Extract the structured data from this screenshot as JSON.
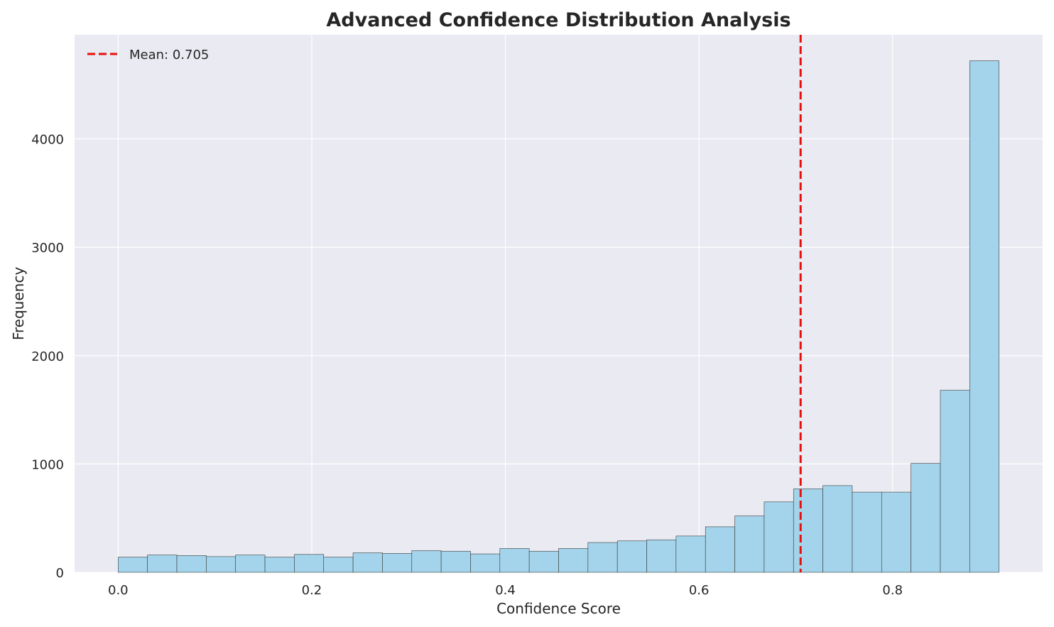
{
  "chart_data": {
    "type": "bar",
    "title": "Advanced Confidence Distribution Analysis",
    "xlabel": "Confidence Score",
    "ylabel": "Frequency",
    "xlim": [
      -0.045,
      0.955
    ],
    "ylim": [
      0,
      4960
    ],
    "xticks": [
      0.0,
      0.2,
      0.4,
      0.6,
      0.8
    ],
    "xtick_labels": [
      "0.0",
      "0.2",
      "0.4",
      "0.6",
      "0.8"
    ],
    "yticks": [
      0,
      1000,
      2000,
      3000,
      4000
    ],
    "ytick_labels": [
      "0",
      "1000",
      "2000",
      "3000",
      "4000"
    ],
    "grid": true,
    "bins": {
      "start": 0.0,
      "end": 0.91,
      "count": 30
    },
    "values": [
      140,
      160,
      155,
      145,
      160,
      140,
      165,
      140,
      180,
      175,
      200,
      195,
      170,
      220,
      195,
      220,
      275,
      290,
      300,
      335,
      420,
      520,
      650,
      770,
      800,
      740,
      740,
      1005,
      1680,
      4720
    ],
    "bar_color": "#a3d4eb",
    "bar_edge_color": "#3a3a3a",
    "mean_line": {
      "value": 0.705,
      "label": "Mean: 0.705",
      "color": "#e8100c",
      "style": "dashed"
    },
    "legend": {
      "position": "top-left",
      "entries": [
        "Mean: 0.705"
      ]
    },
    "background_color": "#eaeaf2"
  }
}
